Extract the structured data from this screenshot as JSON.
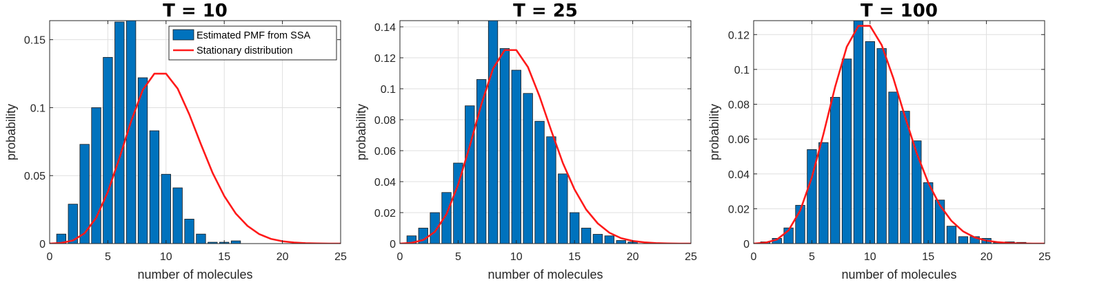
{
  "colors": {
    "bar_fill": "#0072BD",
    "bar_edge": "#1a1a1a",
    "line": "#FF1A1A",
    "grid": "#DFDFDF",
    "axis": "#262626"
  },
  "chart_data": [
    {
      "type": "bar",
      "title": "T = 10",
      "xlabel": "number of molecules",
      "ylabel": "probability",
      "xlim": [
        0,
        25
      ],
      "ylim": [
        0,
        0.164
      ],
      "xticks": [
        0,
        5,
        10,
        15,
        20,
        25
      ],
      "yticks": [
        0,
        0.05,
        0.1,
        0.15
      ],
      "ytick_labels": [
        "0",
        "0.05",
        "0.1",
        "0.15"
      ],
      "grid": true,
      "legend": {
        "location": "top-right",
        "entries": [
          "Estimated PMF from SSA",
          "Stationary distribution"
        ]
      },
      "series": [
        {
          "name": "Estimated PMF from SSA",
          "kind": "bar",
          "x": [
            1,
            2,
            3,
            4,
            5,
            6,
            7,
            8,
            9,
            10,
            11,
            12,
            13,
            14,
            15,
            16
          ],
          "values": [
            0.007,
            0.029,
            0.073,
            0.1,
            0.137,
            0.163,
            0.164,
            0.122,
            0.083,
            0.051,
            0.041,
            0.018,
            0.007,
            0.001,
            0.001,
            0.002
          ]
        },
        {
          "name": "Stationary distribution",
          "kind": "line",
          "x": [
            0,
            1,
            2,
            3,
            4,
            5,
            6,
            7,
            8,
            9,
            10,
            11,
            12,
            13,
            14,
            15,
            16,
            17,
            18,
            19,
            20,
            21,
            22,
            23,
            24,
            25
          ],
          "values": [
            0.0,
            0.0005,
            0.0023,
            0.0076,
            0.019,
            0.038,
            0.063,
            0.09,
            0.113,
            0.125,
            0.125,
            0.114,
            0.095,
            0.073,
            0.052,
            0.035,
            0.022,
            0.013,
            0.007,
            0.0035,
            0.0017,
            0.0008,
            0.0003,
            0.0001,
            0.0,
            0.0
          ]
        }
      ]
    },
    {
      "type": "bar",
      "title": "T = 25",
      "xlabel": "number of molecules",
      "ylabel": "probability",
      "xlim": [
        0,
        25
      ],
      "ylim": [
        0,
        0.144
      ],
      "xticks": [
        0,
        5,
        10,
        15,
        20,
        25
      ],
      "yticks": [
        0,
        0.02,
        0.04,
        0.06,
        0.08,
        0.1,
        0.12,
        0.14
      ],
      "ytick_labels": [
        "0",
        "0.02",
        "0.04",
        "0.06",
        "0.08",
        "0.1",
        "0.12",
        "0.14"
      ],
      "grid": true,
      "series": [
        {
          "kind": "bar",
          "x": [
            1,
            2,
            3,
            4,
            5,
            6,
            7,
            8,
            9,
            10,
            11,
            12,
            13,
            14,
            15,
            16,
            17,
            18,
            19,
            20
          ],
          "values": [
            0.005,
            0.01,
            0.02,
            0.033,
            0.052,
            0.089,
            0.106,
            0.144,
            0.126,
            0.112,
            0.097,
            0.079,
            0.069,
            0.045,
            0.02,
            0.01,
            0.006,
            0.005,
            0.002,
            0.001
          ]
        },
        {
          "kind": "line",
          "x": [
            0,
            1,
            2,
            3,
            4,
            5,
            6,
            7,
            8,
            9,
            10,
            11,
            12,
            13,
            14,
            15,
            16,
            17,
            18,
            19,
            20,
            21,
            22,
            23,
            24,
            25
          ],
          "values": [
            0.0,
            0.0005,
            0.0023,
            0.0076,
            0.019,
            0.038,
            0.063,
            0.09,
            0.113,
            0.125,
            0.125,
            0.114,
            0.095,
            0.073,
            0.052,
            0.035,
            0.022,
            0.013,
            0.007,
            0.0035,
            0.0017,
            0.0008,
            0.0003,
            0.0001,
            0.0,
            0.0
          ]
        }
      ]
    },
    {
      "type": "bar",
      "title": "T = 100",
      "xlabel": "number of molecules",
      "ylabel": "probability",
      "xlim": [
        0,
        25
      ],
      "ylim": [
        0,
        0.128
      ],
      "xticks": [
        0,
        5,
        10,
        15,
        20,
        25
      ],
      "yticks": [
        0,
        0.02,
        0.04,
        0.06,
        0.08,
        0.1,
        0.12
      ],
      "ytick_labels": [
        "0",
        "0.02",
        "0.04",
        "0.06",
        "0.08",
        "0.1",
        "0.12"
      ],
      "grid": true,
      "series": [
        {
          "kind": "bar",
          "x": [
            1,
            2,
            3,
            4,
            5,
            6,
            7,
            8,
            9,
            10,
            11,
            12,
            13,
            14,
            15,
            16,
            17,
            18,
            19,
            20,
            21,
            22,
            23
          ],
          "values": [
            0.001,
            0.003,
            0.009,
            0.022,
            0.054,
            0.058,
            0.084,
            0.106,
            0.129,
            0.116,
            0.112,
            0.087,
            0.076,
            0.059,
            0.035,
            0.025,
            0.01,
            0.004,
            0.004,
            0.003,
            0.0005,
            0.001,
            0.0007
          ]
        },
        {
          "kind": "line",
          "x": [
            0,
            1,
            2,
            3,
            4,
            5,
            6,
            7,
            8,
            9,
            10,
            11,
            12,
            13,
            14,
            15,
            16,
            17,
            18,
            19,
            20,
            21,
            22,
            23,
            24,
            25
          ],
          "values": [
            0.0,
            0.0005,
            0.0023,
            0.0076,
            0.019,
            0.038,
            0.063,
            0.09,
            0.113,
            0.125,
            0.125,
            0.114,
            0.095,
            0.073,
            0.052,
            0.035,
            0.022,
            0.013,
            0.007,
            0.0035,
            0.0017,
            0.0008,
            0.0003,
            0.0001,
            0.0,
            0.0
          ]
        }
      ]
    }
  ]
}
